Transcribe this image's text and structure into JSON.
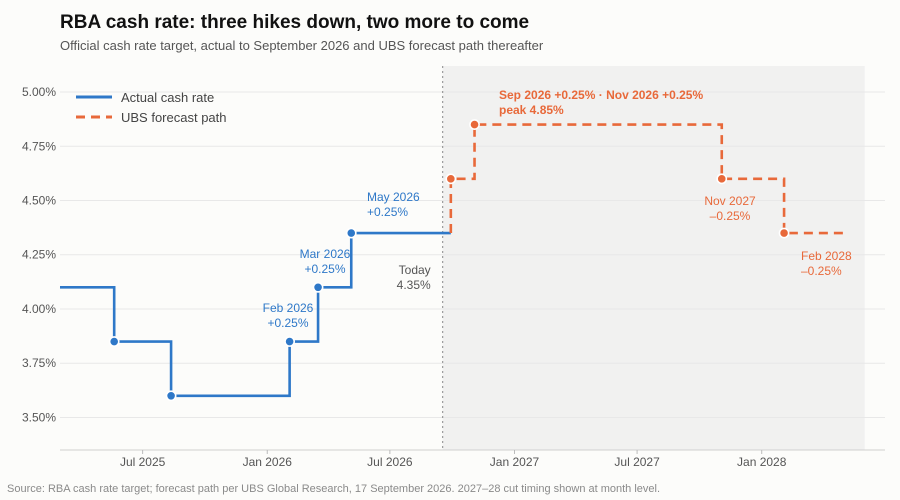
{
  "title": "RBA cash rate: three hikes down, two more to come",
  "subtitle": "Official cash rate target, actual to September 2026 and UBS forecast path thereafter",
  "source": "Source: RBA cash rate target; forecast path per UBS Global Research, 17 September 2026. 2027–28 cut timing shown at month level.",
  "colors": {
    "actual": "#2e78c8",
    "forecast": "#e8693a",
    "forecast_shade": "#f1f1f0",
    "today_line": "#888888",
    "grid": "#e8e8e8"
  },
  "chart_data": {
    "type": "line",
    "title": "RBA cash rate: three hikes down, two more to come",
    "subtitle": "Official cash rate target, actual to September 2026 and UBS forecast path thereafter",
    "y_unit": "%",
    "ylim": [
      3.35,
      5.12
    ],
    "y_ticks": [
      "3.50%",
      "3.75%",
      "4.00%",
      "4.25%",
      "4.50%",
      "4.75%",
      "5.00%"
    ],
    "y_tick_values": [
      3.5,
      3.75,
      4.0,
      4.25,
      4.5,
      4.75,
      5.0
    ],
    "x_range": [
      "2025-03-01",
      "2028-07-01"
    ],
    "x_ticks": [
      {
        "date": "2025-07-01",
        "label": "Jul 2025"
      },
      {
        "date": "2026-01-01",
        "label": "Jan 2026"
      },
      {
        "date": "2026-07-01",
        "label": "Jul 2026"
      },
      {
        "date": "2027-01-01",
        "label": "Jan 2027"
      },
      {
        "date": "2027-07-01",
        "label": "Jul 2027"
      },
      {
        "date": "2028-01-01",
        "label": "Jan 2028"
      }
    ],
    "grid": "horizontal",
    "legend_position": "top-left",
    "series": [
      {
        "name": "Actual cash rate",
        "style": "solid step",
        "points": [
          {
            "x": "2025-03-01",
            "y": 4.1
          },
          {
            "x": "2025-05-20",
            "y": 3.85,
            "marker": true
          },
          {
            "x": "2025-08-12",
            "y": 3.6,
            "marker": true
          },
          {
            "x": "2026-02-03",
            "y": 3.85,
            "marker": true
          },
          {
            "x": "2026-03-17",
            "y": 4.1,
            "marker": true
          },
          {
            "x": "2026-05-05",
            "y": 4.35,
            "marker": true
          },
          {
            "x": "2026-09-29",
            "y": 4.35
          }
        ]
      },
      {
        "name": "UBS forecast path",
        "style": "dashed step",
        "points": [
          {
            "x": "2026-09-29",
            "y": 4.35
          },
          {
            "x": "2026-09-29",
            "y": 4.6,
            "marker": true
          },
          {
            "x": "2026-11-03",
            "y": 4.85,
            "marker": true
          },
          {
            "x": "2027-11-03",
            "y": 4.6,
            "marker": true
          },
          {
            "x": "2028-02-03",
            "y": 4.35,
            "marker": true
          },
          {
            "x": "2028-05-01",
            "y": 4.35
          }
        ]
      }
    ],
    "today": {
      "date": "2026-09-17",
      "label_line1": "Today",
      "label_line2": "4.35%"
    },
    "forecast_region": [
      "2026-09-17",
      "2028-06-01"
    ],
    "annotations": [
      {
        "series": "actual",
        "line1": "Feb 2026",
        "line2": "+0.25%"
      },
      {
        "series": "actual",
        "line1": "Mar 2026",
        "line2": "+0.25%"
      },
      {
        "series": "actual",
        "line1": "May 2026",
        "line2": "+0.25%"
      },
      {
        "series": "forecast",
        "line1": "Sep 2026 +0.25%  ·  Nov 2026 +0.25%",
        "line2": "peak 4.85%"
      },
      {
        "series": "forecast",
        "line1": "Nov 2027",
        "line2": "–0.25%"
      },
      {
        "series": "forecast",
        "line1": "Feb 2028",
        "line2": "–0.25%"
      }
    ]
  }
}
